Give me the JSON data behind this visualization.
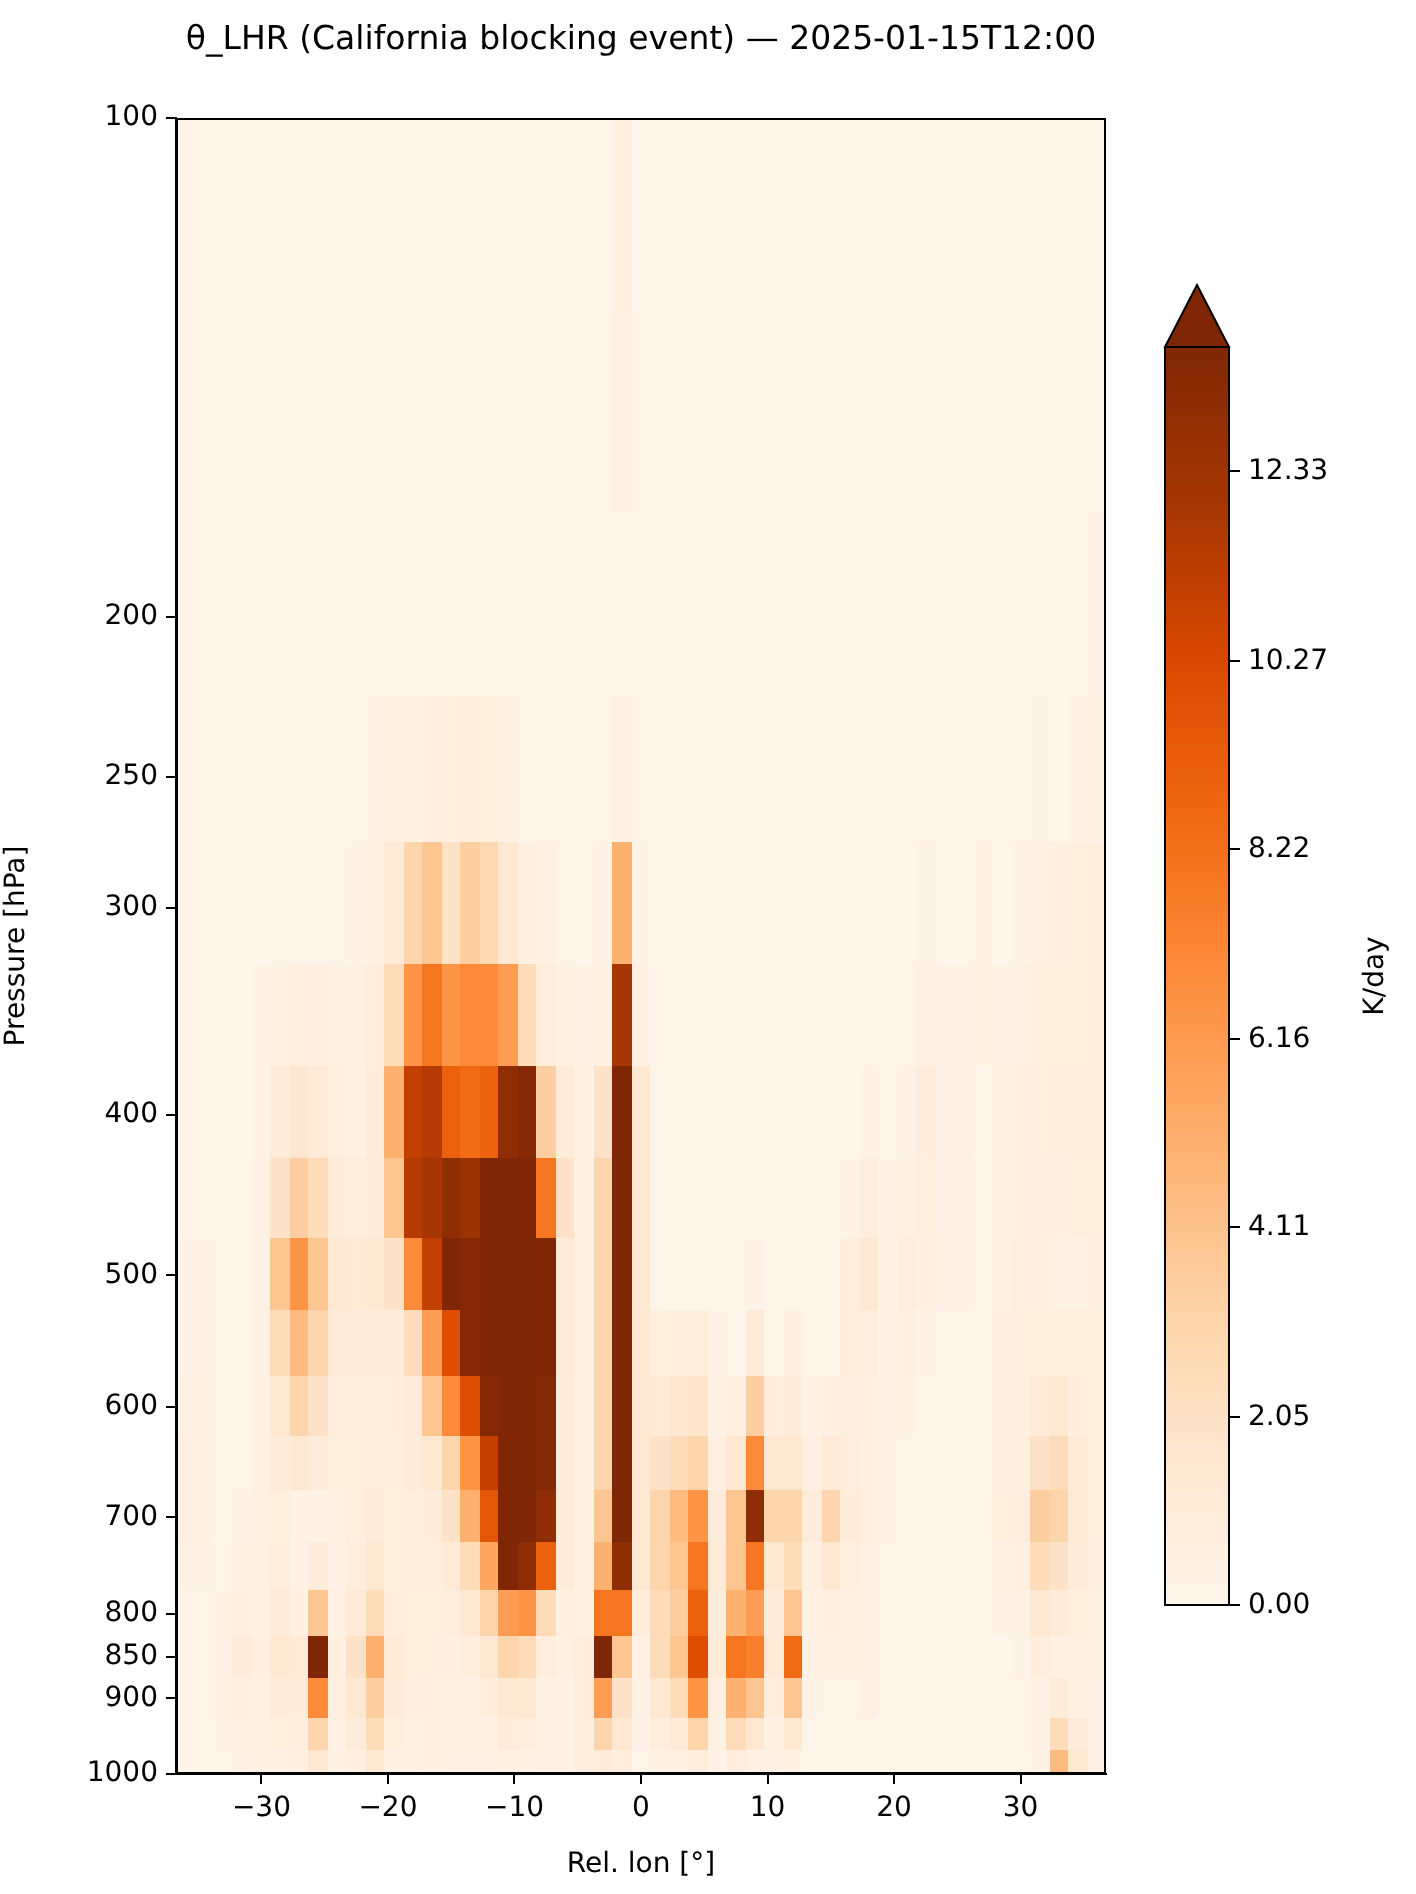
{
  "chart_data": {
    "type": "heatmap",
    "title": "θ_LHR (California blocking event) — 2025-01-15T12:00",
    "xlabel": "Rel. lon [°]",
    "ylabel": "Pressure [hPa]",
    "clabel": "K/day",
    "x": [
      -36,
      -34.5,
      -33,
      -31.5,
      -30,
      -28.5,
      -27,
      -25.5,
      -24,
      -22.5,
      -21,
      -19.5,
      -18,
      -16.5,
      -15,
      -13.5,
      -12,
      -10.5,
      -9,
      -7.5,
      -6,
      -4.5,
      -3,
      -1.5,
      0,
      1.5,
      3,
      4.5,
      6,
      7.5,
      9,
      10.5,
      12,
      13.5,
      15,
      16.5,
      18,
      19.5,
      21,
      22.5,
      24,
      25.5,
      27,
      28.5,
      30,
      31.5,
      33,
      34.5,
      36
    ],
    "y": [
      114.5,
      150,
      200,
      250,
      300,
      350,
      400,
      450,
      500,
      550,
      600,
      650,
      700,
      750,
      800,
      850,
      900,
      950,
      983
    ],
    "cells": [
      [
        0.1,
        0.1,
        0.1,
        0.1,
        0.1,
        0.1,
        0.1,
        0.1,
        0.1,
        0.1,
        0.1,
        0.1,
        0.1,
        0.1,
        0.1,
        0.1,
        0.1,
        0.1,
        0.1,
        0.1,
        0.1,
        0.1,
        0.1,
        0.6,
        0.1,
        0.1,
        0.1,
        0.1,
        0.1,
        0.1,
        0.1,
        0.1,
        0.1,
        0.1,
        0.1,
        0.1,
        0.1,
        0.1,
        0.1,
        0.1,
        0.1,
        0.1,
        0.1,
        0.1,
        0.1,
        0.1,
        0.1,
        0.1,
        0.1
      ],
      [
        0.1,
        0.1,
        0.1,
        0.1,
        0.1,
        0.1,
        0.1,
        0.1,
        0.1,
        0.1,
        0.1,
        0.1,
        0.1,
        0.1,
        0.1,
        0.1,
        0.1,
        0.1,
        0.1,
        0.1,
        0.1,
        0.1,
        0.1,
        0.4,
        0.1,
        0.1,
        0.1,
        0.1,
        0.1,
        0.1,
        0.1,
        0.1,
        0.1,
        0.1,
        0.1,
        0.1,
        0.1,
        0.1,
        0.1,
        0.1,
        0.1,
        0.1,
        0.1,
        0.1,
        0.1,
        0.1,
        0.1,
        0.1,
        0.1
      ],
      [
        0.1,
        0.1,
        0.1,
        0.1,
        0.1,
        0.1,
        0.1,
        0.1,
        0.1,
        0.1,
        0.1,
        0.1,
        0.1,
        0.1,
        0.1,
        0.1,
        0.1,
        0.1,
        0.1,
        0.1,
        0.1,
        0.1,
        0.1,
        0.1,
        0.1,
        0.1,
        0.1,
        0.1,
        0.1,
        0.1,
        0.1,
        0.1,
        0.1,
        0.1,
        0.1,
        0.1,
        0.1,
        0.1,
        0.1,
        0.1,
        0.1,
        0.1,
        0.1,
        0.1,
        0.1,
        0.1,
        0.1,
        0.1,
        0.3
      ],
      [
        0.1,
        0.1,
        0.1,
        0.1,
        0.1,
        0.1,
        0.1,
        0.1,
        0.1,
        0.1,
        0.2,
        0.4,
        0.5,
        0.6,
        0.7,
        0.8,
        0.7,
        0.5,
        0.1,
        0.1,
        0.1,
        0.1,
        0.1,
        0.5,
        0.1,
        0.1,
        0.1,
        0.1,
        0.1,
        0.1,
        0.1,
        0.1,
        0.1,
        0.1,
        0.1,
        0.1,
        0.1,
        0.1,
        0.1,
        0.1,
        0.1,
        0.1,
        0.1,
        0.1,
        0.1,
        0.3,
        0.1,
        0.3,
        0.5
      ],
      [
        0.1,
        0.1,
        0.1,
        0.1,
        0.1,
        0.1,
        0.1,
        0.1,
        0.1,
        0.3,
        0.5,
        1.2,
        3,
        4,
        2,
        3.5,
        2.8,
        1.5,
        0.6,
        0.4,
        0.1,
        0.1,
        0.3,
        5,
        0.2,
        0.1,
        0.1,
        0.1,
        0.1,
        0.1,
        0.1,
        0.1,
        0.1,
        0.1,
        0.1,
        0.1,
        0.1,
        0.1,
        0.1,
        0.2,
        0.1,
        0.1,
        0.5,
        0.1,
        0.3,
        0.5,
        0.6,
        0.7,
        0.8
      ],
      [
        0.1,
        0.1,
        0.1,
        0.1,
        0.2,
        0.5,
        0.7,
        0.6,
        0.5,
        0.4,
        0.8,
        2.5,
        6.5,
        8,
        6.5,
        7,
        7,
        6,
        2.5,
        0.8,
        0.5,
        0.3,
        0.5,
        12,
        0.5,
        0.1,
        0.1,
        0.1,
        0.1,
        0.1,
        0.1,
        0.1,
        0.1,
        0.1,
        0.1,
        0.1,
        0.1,
        0.1,
        0.1,
        0.5,
        0.2,
        0.2,
        0.4,
        0.3,
        0.5,
        0.7,
        0.7,
        0.7,
        0.8
      ],
      [
        0.1,
        0.1,
        0.1,
        0.1,
        0.3,
        1.0,
        1.6,
        1.2,
        0.7,
        0.5,
        1.0,
        5,
        11,
        11.5,
        9,
        8.5,
        9,
        13,
        13.5,
        3.5,
        1.0,
        0.4,
        2,
        14,
        1.5,
        0.1,
        0.1,
        0.1,
        0.1,
        0.1,
        0.1,
        0.1,
        0.1,
        0.1,
        0.1,
        0.1,
        0.3,
        0.1,
        0.2,
        0.9,
        0.2,
        0.5,
        0.1,
        0.4,
        0.6,
        0.7,
        0.8,
        0.8,
        0.8
      ],
      [
        0.1,
        0.1,
        0.1,
        0.1,
        0.4,
        2.0,
        3.5,
        2.5,
        1.0,
        0.8,
        1.0,
        4,
        11.5,
        12,
        13,
        12.5,
        14,
        14.5,
        14.5,
        8,
        2.0,
        0.4,
        3,
        14,
        1.5,
        0.1,
        0.1,
        0.1,
        0.1,
        0.1,
        0.1,
        0.1,
        0.1,
        0.1,
        0.1,
        0.3,
        0.8,
        0.2,
        0.5,
        0.7,
        0.2,
        0.2,
        0.1,
        0.5,
        0.6,
        0.7,
        0.6,
        0.7,
        0.7
      ],
      [
        0.2,
        0.2,
        0.1,
        0.1,
        0.5,
        4.0,
        6.5,
        4.0,
        1.5,
        1.3,
        1.5,
        2.0,
        7,
        11,
        14,
        13.5,
        14.5,
        14.5,
        14.5,
        14,
        1.2,
        0.4,
        3,
        14.5,
        1.5,
        0.1,
        0.1,
        0.1,
        0.1,
        0.1,
        0.3,
        0.1,
        0.1,
        0.1,
        0.1,
        0.8,
        1.5,
        0.3,
        0.8,
        0.6,
        0.2,
        0.2,
        0.1,
        0.5,
        0.7,
        0.6,
        0.3,
        0.3,
        0.6
      ],
      [
        0.3,
        0.2,
        0.1,
        0.1,
        0.5,
        2.5,
        4.5,
        3,
        1.2,
        1.0,
        1.0,
        1.0,
        2.5,
        6,
        10,
        13.5,
        14.5,
        14.5,
        14.5,
        14,
        1.2,
        0.4,
        3,
        14.5,
        1.5,
        0.7,
        0.8,
        0.8,
        0.3,
        0.1,
        1.2,
        0.1,
        0.6,
        0.1,
        0.1,
        0.8,
        0.8,
        0.2,
        0.6,
        0.3,
        0.1,
        0.1,
        0.1,
        0.6,
        0.7,
        0.7,
        0.7,
        0.7,
        0.7
      ],
      [
        0.5,
        0.4,
        0.1,
        0.1,
        0.5,
        1.5,
        3,
        2,
        0.8,
        0.8,
        0.9,
        0.8,
        1.2,
        4,
        7,
        10,
        13.5,
        14.5,
        14.5,
        13.5,
        1.0,
        0.4,
        3,
        14.5,
        1.5,
        1.3,
        1.6,
        1.8,
        0.5,
        0.6,
        3.5,
        0.8,
        1.0,
        0.3,
        0.6,
        0.7,
        0.6,
        0.2,
        0.4,
        0.1,
        0.1,
        0.1,
        0.1,
        0.6,
        0.7,
        1.2,
        1.5,
        0.8,
        0.7
      ],
      [
        0.6,
        0.5,
        0.1,
        0.1,
        0.5,
        1.0,
        1.5,
        1,
        0.7,
        0.7,
        0.9,
        0.8,
        1.0,
        1.5,
        3,
        6.5,
        11,
        14.5,
        14.5,
        13.5,
        1.0,
        0.4,
        3,
        14.5,
        1.5,
        2.0,
        2.5,
        3.0,
        0.6,
        1.5,
        7,
        1.5,
        1.5,
        0.6,
        1.2,
        0.8,
        0.6,
        0.2,
        0.1,
        0.1,
        0.1,
        0.1,
        0.1,
        0.6,
        0.7,
        2.0,
        2.5,
        1.2,
        0.7
      ],
      [
        0.6,
        0.5,
        0.1,
        0.2,
        0.4,
        0.7,
        0.3,
        0.3,
        0.5,
        0.7,
        1.0,
        0.7,
        0.8,
        1.0,
        2,
        5,
        9.5,
        14.5,
        14.5,
        13,
        1.0,
        0.4,
        4,
        14,
        1.5,
        3.0,
        4.5,
        6.5,
        1.0,
        4,
        13,
        3,
        3.0,
        1.0,
        3,
        1.0,
        0.6,
        0.2,
        0.1,
        0.1,
        0.1,
        0.1,
        0.1,
        0.7,
        0.8,
        3.5,
        3.0,
        1.2,
        0.7
      ],
      [
        0.4,
        0.3,
        0.1,
        0.4,
        0.4,
        0.8,
        0.3,
        1.0,
        0.5,
        0.8,
        1.5,
        0.7,
        0.8,
        0.8,
        1.2,
        2.5,
        5.5,
        14,
        13,
        9,
        1.0,
        0.4,
        5,
        13,
        1.5,
        3.0,
        4.0,
        8,
        1.2,
        4,
        8,
        1.5,
        2.5,
        0.6,
        1.5,
        0.7,
        0.5,
        0.1,
        0.1,
        0.1,
        0.1,
        0.1,
        0.1,
        0.5,
        0.6,
        2.5,
        2.0,
        1.0,
        0.6
      ],
      [
        0.1,
        0.1,
        0.4,
        0.6,
        0.4,
        1.0,
        0.6,
        4,
        0.5,
        1.2,
        2.5,
        0.8,
        0.7,
        0.7,
        0.8,
        1.5,
        3,
        6,
        6.5,
        2.5,
        0.6,
        0.4,
        8,
        8,
        0.8,
        2.5,
        3.5,
        9,
        1.0,
        5,
        6,
        1.0,
        4,
        0.5,
        0.6,
        0.5,
        0.5,
        0.1,
        0.1,
        0.1,
        0.1,
        0.1,
        0.1,
        0.3,
        0.4,
        1.5,
        1.0,
        0.7,
        0.5
      ],
      [
        0.1,
        0.1,
        0.5,
        1.0,
        0.6,
        1.5,
        1.2,
        14,
        0.6,
        2.0,
        5,
        1.2,
        0.7,
        0.7,
        0.6,
        0.8,
        1.5,
        3,
        2.5,
        0.8,
        0.5,
        0.8,
        14,
        4,
        0.5,
        2.5,
        4.0,
        10,
        1.0,
        8,
        7.5,
        1.2,
        8.5,
        0.5,
        0.4,
        0.4,
        0.4,
        0.1,
        0.1,
        0.1,
        0.1,
        0.1,
        0.1,
        0.1,
        0.3,
        0.8,
        0.5,
        0.4,
        0.4
      ],
      [
        0.1,
        0.1,
        0.4,
        0.6,
        0.5,
        1.0,
        1.0,
        7,
        0.6,
        1.5,
        3.5,
        1.0,
        0.6,
        0.7,
        0.5,
        0.5,
        0.8,
        1.5,
        1.5,
        0.5,
        0.3,
        0.8,
        6,
        2,
        0.3,
        1.5,
        2.5,
        6.5,
        0.7,
        5,
        4,
        0.8,
        4,
        0.3,
        0.1,
        0.1,
        0.4,
        0.1,
        0.1,
        0.1,
        0.1,
        0.1,
        0.1,
        0.1,
        0.1,
        0.5,
        1.0,
        0.5,
        0.3
      ],
      [
        0.1,
        0.1,
        0.2,
        0.4,
        0.5,
        0.7,
        0.8,
        3,
        0.5,
        1.0,
        2.5,
        0.7,
        0.5,
        0.6,
        0.4,
        0.4,
        0.5,
        1.0,
        0.8,
        0.4,
        0.3,
        0.8,
        3,
        1.5,
        0.2,
        0.8,
        1.2,
        3,
        0.5,
        2.5,
        1.5,
        0.5,
        1.5,
        0.1,
        0.1,
        0.1,
        0.1,
        0.1,
        0.1,
        0.1,
        0.1,
        0.1,
        0.1,
        0.1,
        0.1,
        0.4,
        2.5,
        1.0,
        0.3
      ],
      [
        0.1,
        0.1,
        0.1,
        0.2,
        0.4,
        0.5,
        0.6,
        1.5,
        0.4,
        0.6,
        1.5,
        0.5,
        0.4,
        0.6,
        0.3,
        0.3,
        0.3,
        0.5,
        0.4,
        0.3,
        0.3,
        0.8,
        1,
        0.8,
        0.1,
        0.4,
        0.5,
        0.8,
        0.3,
        0.8,
        0.4,
        0.3,
        0.5,
        0.1,
        0.1,
        0.1,
        0.1,
        0.1,
        0.1,
        0.1,
        0.1,
        0.1,
        0.1,
        0.1,
        0.1,
        0.3,
        4.5,
        1.5,
        0.3
      ]
    ],
    "clim": [
      0,
      13.7
    ],
    "cticks": [
      {
        "value": 0,
        "label": "0.00"
      },
      2.05,
      4.11,
      6.16,
      8.22,
      10.27,
      12.33
    ],
    "xlim": [
      -36.75,
      36.75
    ],
    "xticks": [
      {
        "value": -30,
        "label": "−30"
      },
      {
        "value": -20,
        "label": "−20"
      },
      {
        "value": -10,
        "label": "−10"
      },
      0,
      10,
      20,
      30
    ],
    "ylim": [
      1000,
      100
    ],
    "yticks": [
      100,
      200,
      250,
      300,
      400,
      500,
      600,
      700,
      800,
      850,
      900,
      1000
    ],
    "log": "y"
  }
}
